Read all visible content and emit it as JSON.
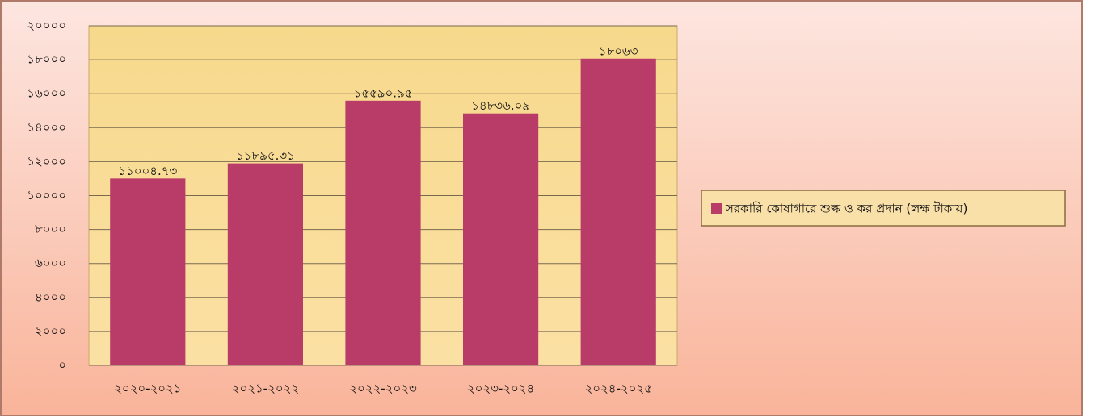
{
  "chart_data": {
    "type": "bar",
    "categories": [
      "২০২০-২০২১",
      "২০২১-২০২২",
      "২০২২-২০২৩",
      "২০২৩-২০২৪",
      "২০২৪-২০২৫"
    ],
    "series": [
      {
        "name": "সরকারি কোষাগারে শুল্ক ও কর প্রদান (লক্ষ টাকায়)",
        "color": "#b83b68",
        "values": [
          11004.73,
          11895.31,
          15590.95,
          14836.09,
          18063
        ],
        "value_labels": [
          "১১০০৪.৭৩",
          "১১৮৯৫.৩১",
          "১৫৫৯০.৯৫",
          "১৪৮৩৬.০৯",
          "১৮০৬৩"
        ]
      }
    ],
    "ylim": [
      0,
      20000
    ],
    "yticks": [
      {
        "value": 0,
        "label": "০"
      },
      {
        "value": 2000,
        "label": "২০০০"
      },
      {
        "value": 4000,
        "label": "৪০০০"
      },
      {
        "value": 6000,
        "label": "৬০০০"
      },
      {
        "value": 8000,
        "label": "৮০০০"
      },
      {
        "value": 10000,
        "label": "১০০০০"
      },
      {
        "value": 12000,
        "label": "১২০০০"
      },
      {
        "value": 14000,
        "label": "১৪০০০"
      },
      {
        "value": 16000,
        "label": "১৬০০০"
      },
      {
        "value": 18000,
        "label": "১৮০০০"
      },
      {
        "value": 20000,
        "label": "২০০০০"
      }
    ],
    "grid": true,
    "legend": "right"
  }
}
